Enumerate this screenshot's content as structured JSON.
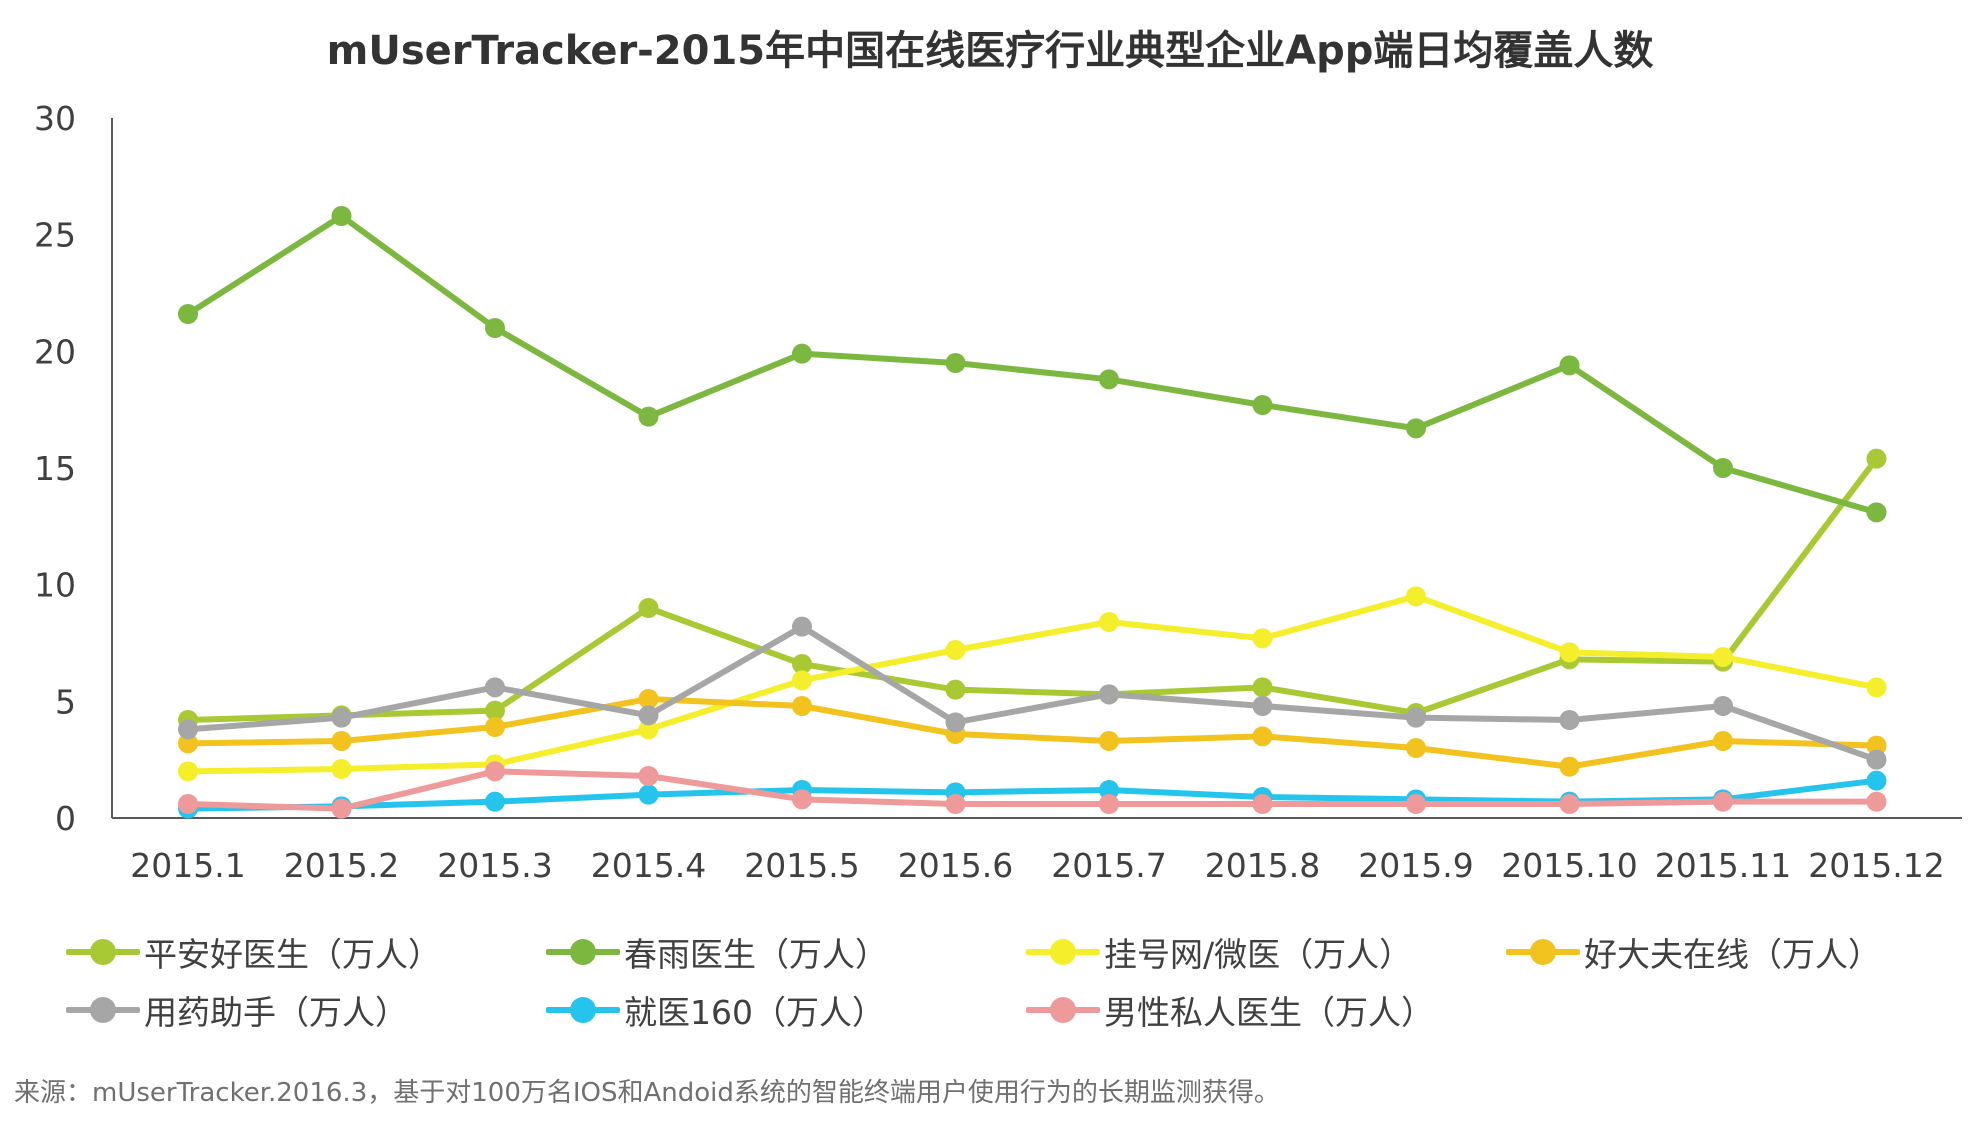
{
  "chart_data": {
    "type": "line",
    "title": "mUserTracker-2015年中国在线医疗行业典型企业App端日均覆盖人数",
    "xlabel": "",
    "ylabel": "",
    "ylim": [
      0,
      30
    ],
    "y_ticks": [
      0,
      5,
      10,
      15,
      20,
      25,
      30
    ],
    "grid": false,
    "legend_position": "bottom",
    "categories": [
      "2015.1",
      "2015.2",
      "2015.3",
      "2015.4",
      "2015.5",
      "2015.6",
      "2015.7",
      "2015.8",
      "2015.9",
      "2015.10",
      "2015.11",
      "2015.12"
    ],
    "series": [
      {
        "name": "平安好医生（万人）",
        "color": "#a9c934",
        "values": [
          4.2,
          4.4,
          4.6,
          9.0,
          6.6,
          5.5,
          5.3,
          5.6,
          4.5,
          6.8,
          6.7,
          15.4
        ]
      },
      {
        "name": "春雨医生（万人）",
        "color": "#7cb83f",
        "values": [
          21.6,
          25.8,
          21.0,
          17.2,
          19.9,
          19.5,
          18.8,
          17.7,
          16.7,
          19.4,
          15.0,
          13.1
        ]
      },
      {
        "name": "挂号网/微医（万人）",
        "color": "#f5ee2a",
        "values": [
          2.0,
          2.1,
          2.3,
          3.8,
          5.9,
          7.2,
          8.4,
          7.7,
          9.5,
          7.1,
          6.9,
          5.6
        ]
      },
      {
        "name": "好大夫在线（万人）",
        "color": "#f2c21e",
        "values": [
          3.2,
          3.3,
          3.9,
          5.1,
          4.8,
          3.6,
          3.3,
          3.5,
          3.0,
          2.2,
          3.3,
          3.1
        ]
      },
      {
        "name": "用药助手（万人）",
        "color": "#a6a6a6",
        "values": [
          3.8,
          4.3,
          5.6,
          4.4,
          8.2,
          4.1,
          5.3,
          4.8,
          4.3,
          4.2,
          4.8,
          2.5
        ]
      },
      {
        "name": "就医160（万人）",
        "color": "#25c4ec",
        "values": [
          0.4,
          0.5,
          0.7,
          1.0,
          1.2,
          1.1,
          1.2,
          0.9,
          0.8,
          0.7,
          0.8,
          1.6
        ]
      },
      {
        "name": "男性私人医生（万人）",
        "color": "#ef9a9a",
        "values": [
          0.6,
          0.4,
          2.0,
          1.8,
          0.8,
          0.6,
          0.6,
          0.6,
          0.6,
          0.6,
          0.7,
          0.7
        ]
      }
    ]
  },
  "source_note": "来源：mUserTracker.2016.3，基于对100万名IOS和Andoid系统的智能终端用户使用行为的长期监测获得。"
}
